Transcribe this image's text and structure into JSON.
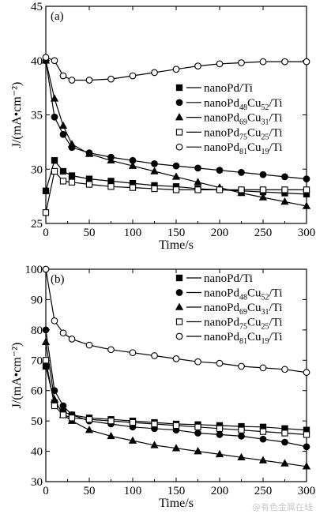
{
  "chart_data": [
    {
      "type": "line",
      "panel_label": "(a)",
      "xlabel": "Time/s",
      "ylabel": "J/(mA•cm⁻²)",
      "xlim": [
        0,
        300
      ],
      "ylim": [
        25,
        45
      ],
      "xticks": [
        0,
        50,
        100,
        150,
        200,
        250,
        300
      ],
      "yticks": [
        25,
        30,
        35,
        40,
        45
      ],
      "legend_position": "right",
      "series": [
        {
          "name": "nanoPd/Ti",
          "marker": "square-filled",
          "x": [
            0,
            10,
            20,
            30,
            50,
            75,
            100,
            125,
            150,
            175,
            200,
            225,
            250,
            275,
            300
          ],
          "y": [
            28.0,
            30.8,
            29.8,
            29.4,
            29.1,
            28.9,
            28.7,
            28.5,
            28.4,
            28.2,
            28.1,
            28.0,
            27.9,
            27.8,
            27.7
          ]
        },
        {
          "name": "nanoPd48Cu52/Ti",
          "marker": "circle-filled",
          "x": [
            0,
            10,
            20,
            30,
            50,
            75,
            100,
            125,
            150,
            175,
            200,
            225,
            250,
            275,
            300
          ],
          "y": [
            40.0,
            34.8,
            33.2,
            32.0,
            31.5,
            31.1,
            30.8,
            30.5,
            30.3,
            30.1,
            29.9,
            29.7,
            29.5,
            29.3,
            29.1
          ]
        },
        {
          "name": "nanoPd69Cu31/Ti",
          "marker": "triangle-filled",
          "x": [
            0,
            10,
            20,
            30,
            50,
            75,
            100,
            125,
            150,
            175,
            200,
            225,
            250,
            275,
            300
          ],
          "y": [
            40.0,
            36.5,
            34.0,
            32.3,
            31.4,
            30.8,
            30.3,
            29.8,
            29.3,
            28.8,
            28.3,
            27.8,
            27.4,
            27.0,
            26.6
          ]
        },
        {
          "name": "nanoPd75Cu25/Ti",
          "marker": "square-open",
          "x": [
            0,
            10,
            20,
            30,
            50,
            75,
            100,
            125,
            150,
            175,
            200,
            225,
            250,
            275,
            300
          ],
          "y": [
            26.0,
            29.8,
            28.9,
            28.8,
            28.6,
            28.4,
            28.3,
            28.2,
            28.1,
            28.1,
            28.1,
            28.1,
            28.1,
            28.1,
            28.1
          ]
        },
        {
          "name": "nanoPd81Cu19/Ti",
          "marker": "circle-open",
          "x": [
            0,
            10,
            20,
            30,
            50,
            75,
            100,
            125,
            150,
            175,
            200,
            225,
            250,
            275,
            300
          ],
          "y": [
            40.3,
            40.0,
            38.6,
            38.2,
            38.2,
            38.3,
            38.6,
            38.9,
            39.2,
            39.5,
            39.7,
            39.8,
            39.9,
            39.9,
            39.9
          ]
        }
      ]
    },
    {
      "type": "line",
      "panel_label": "(b)",
      "xlabel": "Time/s",
      "ylabel": "J/(mA•cm⁻²)",
      "xlim": [
        0,
        300
      ],
      "ylim": [
        30,
        100
      ],
      "xticks": [
        0,
        50,
        100,
        150,
        200,
        250,
        300
      ],
      "yticks": [
        30,
        40,
        50,
        60,
        70,
        80,
        90,
        100
      ],
      "legend_position": "right",
      "series": [
        {
          "name": "nanoPd/Ti",
          "marker": "square-filled",
          "x": [
            0,
            10,
            20,
            30,
            50,
            75,
            100,
            125,
            150,
            175,
            200,
            225,
            250,
            275,
            300
          ],
          "y": [
            68,
            56,
            53,
            52,
            51,
            50.5,
            50,
            49.5,
            49,
            48.8,
            48.5,
            48.2,
            48,
            47.5,
            47
          ]
        },
        {
          "name": "nanoPd48Cu52/Ti",
          "marker": "circle-filled",
          "x": [
            0,
            10,
            20,
            30,
            50,
            75,
            100,
            125,
            150,
            175,
            200,
            225,
            250,
            275,
            300
          ],
          "y": [
            80,
            60,
            55,
            52,
            50,
            49,
            48,
            47.5,
            47,
            46,
            45.5,
            45,
            44,
            43,
            41.5
          ]
        },
        {
          "name": "nanoPd69Cu31/Ti",
          "marker": "triangle-filled",
          "x": [
            0,
            10,
            20,
            30,
            50,
            75,
            100,
            125,
            150,
            175,
            200,
            225,
            250,
            275,
            300
          ],
          "y": [
            76,
            57,
            52,
            50,
            47,
            45,
            43.5,
            42,
            41,
            40,
            39,
            38,
            37,
            36,
            35
          ]
        },
        {
          "name": "nanoPd75Cu25/Ti",
          "marker": "square-open",
          "x": [
            0,
            10,
            20,
            30,
            50,
            75,
            100,
            125,
            150,
            175,
            200,
            225,
            250,
            275,
            300
          ],
          "y": [
            70,
            55,
            52,
            51,
            50.5,
            50,
            49.5,
            49,
            48.5,
            48,
            47.5,
            47,
            46.5,
            46,
            45.5
          ]
        },
        {
          "name": "nanoPd81Cu19/Ti",
          "marker": "circle-open",
          "x": [
            0,
            10,
            20,
            30,
            50,
            75,
            100,
            125,
            150,
            175,
            200,
            225,
            250,
            275,
            300
          ],
          "y": [
            100,
            83,
            79,
            77,
            75,
            73.5,
            72.5,
            71.5,
            70.5,
            69.5,
            69,
            68,
            67.5,
            67,
            66
          ]
        }
      ]
    }
  ],
  "legend_labels": [
    {
      "base": "nanoPd",
      "sub1": "",
      "mid": "",
      "sub2": "",
      "tail": "/Ti"
    },
    {
      "base": "nanoPd",
      "sub1": "48",
      "mid": "Cu",
      "sub2": "52",
      "tail": "/Ti"
    },
    {
      "base": "nanoPd",
      "sub1": "69",
      "mid": "Cu",
      "sub2": "31",
      "tail": "/Ti"
    },
    {
      "base": "nanoPd",
      "sub1": "75",
      "mid": "Cu",
      "sub2": "25",
      "tail": "/Ti"
    },
    {
      "base": "nanoPd",
      "sub1": "81",
      "mid": "Cu",
      "sub2": "19",
      "tail": "/Ti"
    }
  ],
  "watermark": "@有色金属在线"
}
